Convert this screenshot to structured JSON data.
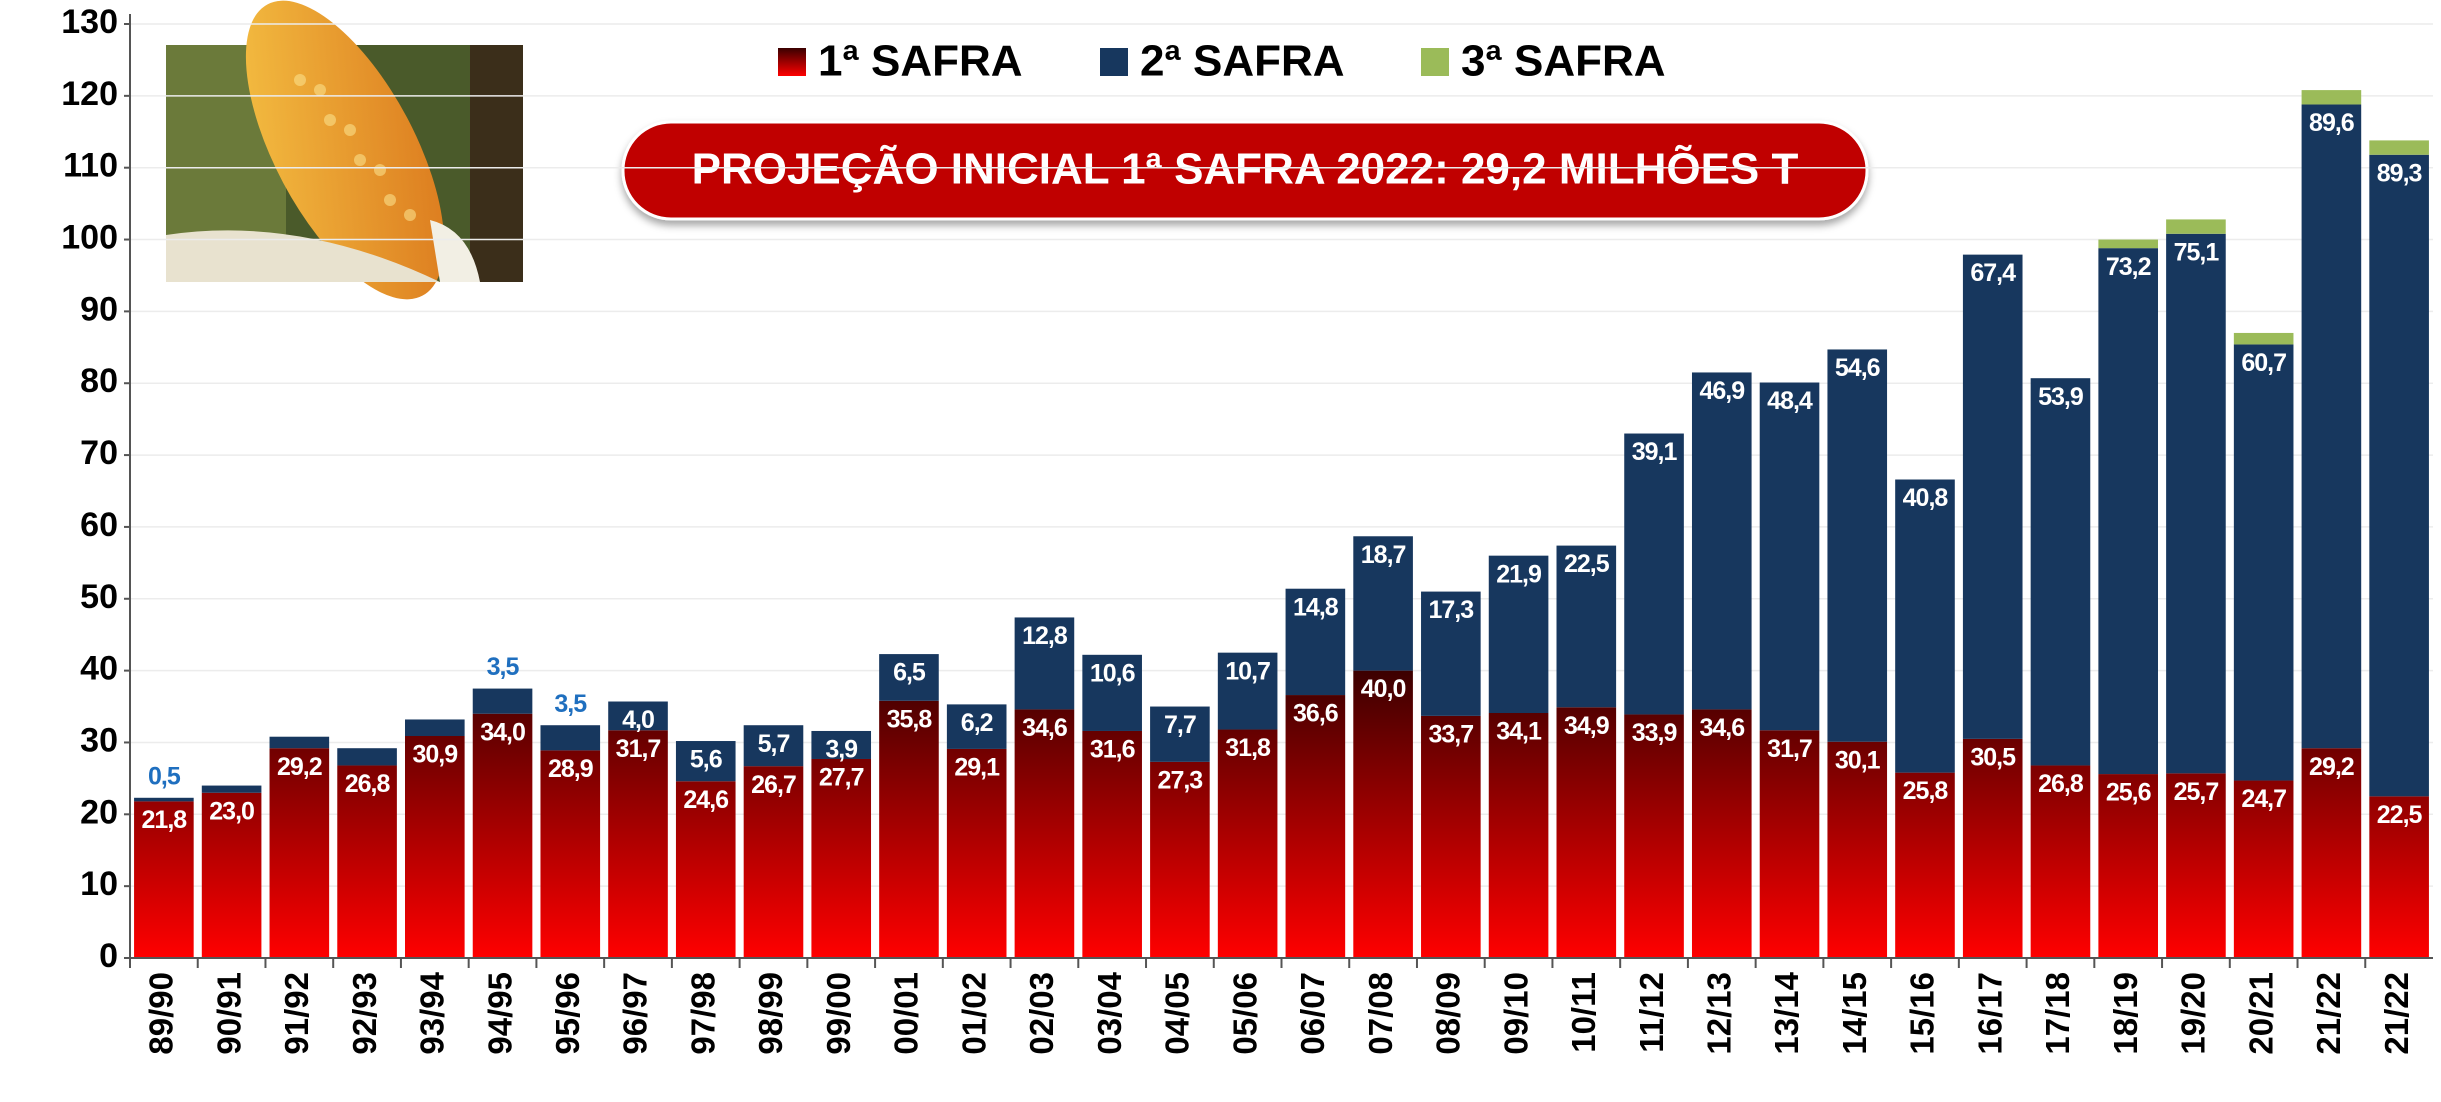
{
  "chart_data": {
    "type": "bar",
    "stacked": true,
    "annotation": "PROJEÇÃO INICIAL 1ª SAFRA 2022: 29,2 MILHÕES T",
    "categories": [
      "89/90",
      "90/91",
      "91/92",
      "92/93",
      "93/94",
      "94/95",
      "95/96",
      "96/97",
      "97/98",
      "98/99",
      "99/00",
      "00/01",
      "01/02",
      "02/03",
      "03/04",
      "04/05",
      "05/06",
      "06/07",
      "07/08",
      "08/09",
      "09/10",
      "10/11",
      "11/12",
      "12/13",
      "13/14",
      "14/15",
      "15/16",
      "16/17",
      "17/18",
      "18/19",
      "19/20",
      "20/21",
      "21/22",
      "21/22"
    ],
    "series": [
      {
        "name": "1ª SAFRA",
        "color": "#ff0000",
        "values": [
          21.8,
          23.0,
          29.2,
          26.8,
          30.9,
          34.0,
          28.9,
          31.7,
          24.6,
          26.7,
          27.7,
          35.8,
          29.1,
          34.6,
          31.6,
          27.3,
          31.8,
          36.6,
          40.0,
          33.7,
          34.1,
          34.9,
          33.9,
          34.6,
          31.7,
          30.1,
          25.8,
          30.5,
          26.8,
          25.6,
          25.7,
          24.7,
          29.2,
          22.5
        ],
        "value_labels": [
          "21,8",
          "23,0",
          "29,2",
          "26,8",
          "30,9",
          "34,0",
          "28,9",
          "31,7",
          "24,6",
          "26,7",
          "27,7",
          "35,8",
          "29,1",
          "34,6",
          "31,6",
          "27,3",
          "31,8",
          "36,6",
          "40,0",
          "33,7",
          "34,1",
          "34,9",
          "33,9",
          "34,6",
          "31,7",
          "30,1",
          "25,8",
          "30,5",
          "26,8",
          "25,6",
          "25,7",
          "24,7",
          "29,2",
          "22,5"
        ]
      },
      {
        "name": "2ª SAFRA",
        "color": "#17375e",
        "values": [
          0.5,
          1.0,
          1.6,
          2.4,
          2.3,
          3.5,
          3.5,
          4.0,
          5.6,
          5.7,
          3.9,
          6.5,
          6.2,
          12.8,
          10.6,
          7.7,
          10.7,
          14.8,
          18.7,
          17.3,
          21.9,
          22.5,
          39.1,
          46.9,
          48.4,
          54.6,
          40.8,
          67.4,
          53.9,
          73.2,
          75.1,
          60.7,
          89.6,
          89.3
        ],
        "value_labels": [
          "0,5",
          null,
          null,
          null,
          null,
          "3,5",
          "3,5",
          "4,0",
          "5,6",
          "5,7",
          "3,9",
          "6,5",
          "6,2",
          "12,8",
          "10,6",
          "7,7",
          "10,7",
          "14,8",
          "18,7",
          "17,3",
          "21,9",
          "22,5",
          "39,1",
          "46,9",
          "48,4",
          "54,6",
          "40,8",
          "67,4",
          "53,9",
          "73,2",
          "75,1",
          "60,7",
          "89,6",
          "89,3"
        ]
      },
      {
        "name": "3ª SAFRA",
        "color": "#9bbb59",
        "values": [
          0,
          0,
          0,
          0,
          0,
          0,
          0,
          0,
          0,
          0,
          0,
          0,
          0,
          0,
          0,
          0,
          0,
          0,
          0,
          0,
          0,
          0,
          0,
          0,
          0,
          0,
          0,
          0,
          0,
          1.2,
          2.0,
          1.6,
          2.0,
          2.0
        ]
      }
    ],
    "ylim": [
      0,
      130
    ],
    "yticks": [
      0,
      10,
      20,
      30,
      40,
      50,
      60,
      70,
      80,
      90,
      100,
      110,
      120,
      130
    ],
    "grid": true,
    "legend": "top"
  }
}
